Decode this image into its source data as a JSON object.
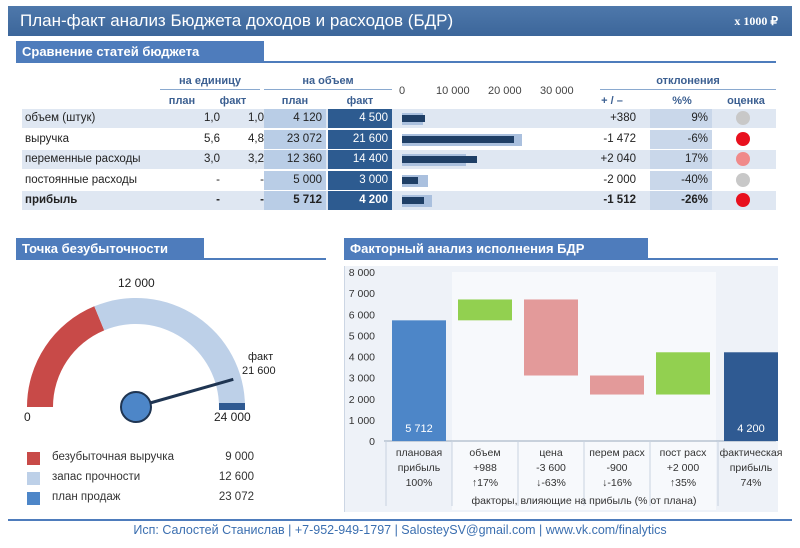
{
  "header": {
    "title": "План-факт анализ Бюджета доходов и расходов (БДР)",
    "unit": "x 1000 ₽"
  },
  "budget": {
    "section_title": "Сравнение статей бюджета",
    "group_per_unit": "на единицу",
    "group_volume": "на объем",
    "group_dev": "отклонения",
    "col_plan": "план",
    "col_fact": "факт",
    "col_abs": "+ / –",
    "col_pct": "%%",
    "col_score": "оценка",
    "axis_ticks": [
      "0",
      "10 000",
      "20 000",
      "30 000"
    ],
    "rows": [
      {
        "name": "объем (штук)",
        "unit_plan": "1,0",
        "unit_fact": "1,0",
        "vol_plan": "4 120",
        "vol_fact": "4 500",
        "plan_value": 4120,
        "fact_value": 4500,
        "dev_abs": "+380",
        "dev_pct": "9%",
        "score_color": "#c8c8c8",
        "bold": false
      },
      {
        "name": "выручка",
        "unit_plan": "5,6",
        "unit_fact": "4,8",
        "vol_plan": "23 072",
        "vol_fact": "21 600",
        "plan_value": 23072,
        "fact_value": 21600,
        "dev_abs": "-1 472",
        "dev_pct": "-6%",
        "score_color": "#e8101e",
        "bold": false
      },
      {
        "name": "переменные расходы",
        "unit_plan": "3,0",
        "unit_fact": "3,2",
        "vol_plan": "12 360",
        "vol_fact": "14 400",
        "plan_value": 12360,
        "fact_value": 14400,
        "dev_abs": "+2 040",
        "dev_pct": "17%",
        "score_color": "#f08a8a",
        "bold": false
      },
      {
        "name": "постоянные расходы",
        "unit_plan": "-",
        "unit_fact": "-",
        "vol_plan": "5 000",
        "vol_fact": "3 000",
        "plan_value": 5000,
        "fact_value": 3000,
        "dev_abs": "-2 000",
        "dev_pct": "-40%",
        "score_color": "#c8c8c8",
        "bold": false
      },
      {
        "name": "прибыль",
        "unit_plan": "-",
        "unit_fact": "-",
        "vol_plan": "5 712",
        "vol_fact": "4 200",
        "plan_value": 5712,
        "fact_value": 4200,
        "dev_abs": "-1 512",
        "dev_pct": "-26%",
        "score_color": "#e8101e",
        "bold": true
      }
    ]
  },
  "breakeven": {
    "section_title": "Точка безубыточности",
    "label_top": "12 000",
    "label_min": "0",
    "label_max": "24 000",
    "label_fact_title": "факт",
    "label_fact_value": "21 600",
    "gauge_max": 24000,
    "breakeven_value": 9000,
    "fact_value": 21600,
    "legend": [
      {
        "label": "безубыточная выручка",
        "value": "9 000",
        "color": "#c84a48"
      },
      {
        "label": "запас прочности",
        "value": "12 600",
        "color": "#bdd0e8"
      },
      {
        "label": "план продаж",
        "value": "23 072",
        "color": "#4d86c8"
      }
    ]
  },
  "factor": {
    "section_title": "Факторный анализ исполнения БДР",
    "y_ticks": [
      "8 000",
      "7 000",
      "6 000",
      "5 000",
      "4 000",
      "3 000",
      "2 000",
      "1 000",
      "0"
    ],
    "footnote": "факторы, влияющие на прибыль (% от плана)",
    "chart_data": {
      "type": "waterfall",
      "title": "Факторный анализ исполнения БДР",
      "ylim": [
        0,
        8000
      ],
      "categories": [
        "плановая прибыль",
        "объем",
        "цена",
        "перем расх",
        "пост расх",
        "фактическая прибыль"
      ],
      "values": [
        5712,
        988,
        -3600,
        -900,
        2000,
        4200
      ],
      "bar_ranges": [
        [
          0,
          5712
        ],
        [
          5712,
          6700
        ],
        [
          3100,
          6700
        ],
        [
          2200,
          3100
        ],
        [
          2200,
          4200
        ],
        [
          0,
          4200
        ]
      ],
      "bar_colors": [
        "#4d86c8",
        "#92d050",
        "#e39a9a",
        "#e39a9a",
        "#92d050",
        "#2f5a92"
      ]
    },
    "labels": [
      {
        "l1": "плановая",
        "l2": "прибыль",
        "l3": "100%",
        "inside": "5 712"
      },
      {
        "l1": "объем",
        "l2": "+988",
        "l3": "↑17%",
        "inside": ""
      },
      {
        "l1": "цена",
        "l2": "-3 600",
        "l3": "↓-63%",
        "inside": ""
      },
      {
        "l1": "перем расх",
        "l2": "-900",
        "l3": "↓-16%",
        "inside": ""
      },
      {
        "l1": "пост расх",
        "l2": "+2 000",
        "l3": "↑35%",
        "inside": ""
      },
      {
        "l1": "фактическая",
        "l2": "прибыль",
        "l3": "74%",
        "inside": "4 200"
      }
    ]
  },
  "footer": {
    "text": "Исп: Салостей Станислав | +7-952-949-1797 | SalosteySV@gmail.com | www.vk.com/finalytics"
  }
}
